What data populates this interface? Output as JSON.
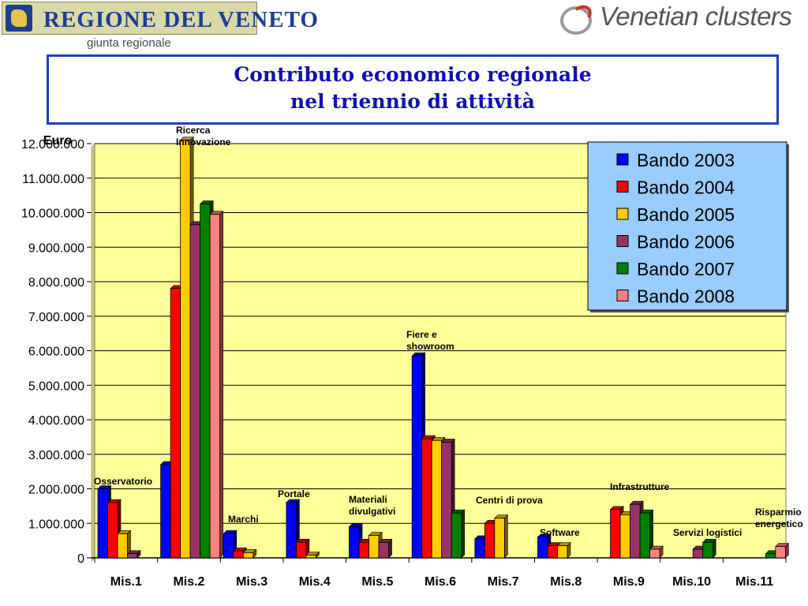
{
  "header": {
    "left_logo_text": "REGIONE DEL VENETO",
    "left_logo_sub": "giunta regionale",
    "right_logo_text": "Venetian clusters"
  },
  "slide": {
    "title_line1": "Contributo economico regionale",
    "title_line2": "nel triennio di attività"
  },
  "colors": {
    "title": "#1010b0",
    "plot_bg": "#ffff99",
    "legend_bg": "#99ccff"
  },
  "chart_data": {
    "type": "bar",
    "ylabel": "Euro",
    "ylim": [
      0,
      12000000
    ],
    "yticks": [
      "0",
      "1.000.000",
      "2.000.000",
      "3.000.000",
      "4.000.000",
      "5.000.000",
      "6.000.000",
      "7.000.000",
      "8.000.000",
      "9.000.000",
      "10.000.000",
      "11.000.000",
      "12.000.000"
    ],
    "grid": true,
    "legend_position": "top-right",
    "categories": [
      "Mis.1",
      "Mis.2",
      "Mis.3",
      "Mis.4",
      "Mis.5",
      "Mis.6",
      "Mis.7",
      "Mis.8",
      "Mis.9",
      "Mis.10",
      "Mis.11"
    ],
    "category_annotations": [
      "Osservatorio",
      "Ricerca Innovazione",
      "Marchi",
      "Portale",
      "Materiali divulgativi",
      "Fiere e showroom",
      "Centri di prova",
      "Software",
      "Infrastrutture",
      "Servizi logistici",
      "Risparmio energetico"
    ],
    "series": [
      {
        "name": "Bando 2003",
        "color": "#0000ff",
        "values": [
          2000000,
          2700000,
          700000,
          1600000,
          900000,
          5850000,
          550000,
          600000,
          0,
          0,
          0
        ]
      },
      {
        "name": "Bando 2004",
        "color": "#ff0000",
        "values": [
          1600000,
          7800000,
          200000,
          450000,
          450000,
          3450000,
          1000000,
          350000,
          1400000,
          0,
          0
        ]
      },
      {
        "name": "Bando 2005",
        "color": "#ffcc00",
        "values": [
          700000,
          12100000,
          150000,
          80000,
          650000,
          3400000,
          1150000,
          350000,
          1250000,
          0,
          0
        ]
      },
      {
        "name": "Bando 2006",
        "color": "#993366",
        "values": [
          120000,
          9650000,
          0,
          0,
          450000,
          3350000,
          0,
          0,
          1550000,
          250000,
          0
        ]
      },
      {
        "name": "Bando 2007",
        "color": "#008000",
        "values": [
          0,
          10250000,
          0,
          0,
          0,
          1300000,
          0,
          0,
          1300000,
          450000,
          120000
        ]
      },
      {
        "name": "Bando 2008",
        "color": "#ff8080",
        "values": [
          0,
          9950000,
          0,
          0,
          0,
          0,
          0,
          0,
          250000,
          0,
          330000
        ]
      }
    ]
  }
}
